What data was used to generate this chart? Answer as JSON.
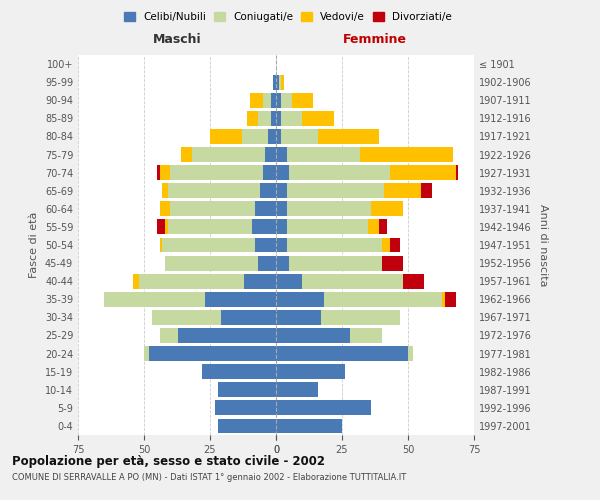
{
  "age_groups": [
    "0-4",
    "5-9",
    "10-14",
    "15-19",
    "20-24",
    "25-29",
    "30-34",
    "35-39",
    "40-44",
    "45-49",
    "50-54",
    "55-59",
    "60-64",
    "65-69",
    "70-74",
    "75-79",
    "80-84",
    "85-89",
    "90-94",
    "95-99",
    "100+"
  ],
  "birth_years": [
    "1997-2001",
    "1992-1996",
    "1987-1991",
    "1982-1986",
    "1977-1981",
    "1972-1976",
    "1967-1971",
    "1962-1966",
    "1957-1961",
    "1952-1956",
    "1947-1951",
    "1942-1946",
    "1937-1941",
    "1932-1936",
    "1927-1931",
    "1922-1926",
    "1917-1921",
    "1912-1916",
    "1907-1911",
    "1902-1906",
    "≤ 1901"
  ],
  "colors": {
    "celibe": "#4a7ab5",
    "coniugato": "#c5d9a0",
    "vedovo": "#ffc000",
    "divorziato": "#c0000c"
  },
  "maschi": {
    "celibe": [
      22,
      23,
      22,
      28,
      48,
      37,
      21,
      27,
      12,
      7,
      8,
      9,
      8,
      6,
      5,
      4,
      3,
      2,
      2,
      1,
      0
    ],
    "coniugato": [
      0,
      0,
      0,
      0,
      2,
      7,
      26,
      38,
      40,
      35,
      35,
      32,
      32,
      35,
      35,
      28,
      10,
      5,
      3,
      0,
      0
    ],
    "vedovo": [
      0,
      0,
      0,
      0,
      0,
      0,
      0,
      0,
      2,
      0,
      1,
      1,
      4,
      2,
      4,
      4,
      12,
      4,
      5,
      0,
      0
    ],
    "divorziato": [
      0,
      0,
      0,
      0,
      0,
      0,
      0,
      0,
      0,
      0,
      0,
      3,
      0,
      0,
      1,
      0,
      0,
      0,
      0,
      0,
      0
    ]
  },
  "femmine": {
    "nubile": [
      25,
      36,
      16,
      26,
      50,
      28,
      17,
      18,
      10,
      5,
      4,
      4,
      4,
      4,
      5,
      4,
      2,
      2,
      2,
      1,
      0
    ],
    "coniugata": [
      0,
      0,
      0,
      0,
      2,
      12,
      30,
      45,
      38,
      35,
      36,
      31,
      32,
      37,
      38,
      28,
      14,
      8,
      4,
      1,
      0
    ],
    "vedova": [
      0,
      0,
      0,
      0,
      0,
      0,
      0,
      1,
      0,
      0,
      3,
      4,
      12,
      14,
      25,
      35,
      23,
      12,
      8,
      1,
      0
    ],
    "divorziata": [
      0,
      0,
      0,
      0,
      0,
      0,
      0,
      4,
      8,
      8,
      4,
      3,
      0,
      4,
      1,
      0,
      0,
      0,
      0,
      0,
      0
    ]
  },
  "xlim": 75,
  "title": "Popolazione per età, sesso e stato civile - 2002",
  "subtitle": "COMUNE DI SERRAVALLE A PO (MN) - Dati ISTAT 1° gennaio 2002 - Elaborazione TUTTITALIA.IT",
  "ylabel_left": "Fasce di età",
  "ylabel_right": "Anni di nascita",
  "xlabel_left": "Maschi",
  "xlabel_right": "Femmine",
  "bg_color": "#f0f0f0",
  "plot_bg": "#ffffff"
}
